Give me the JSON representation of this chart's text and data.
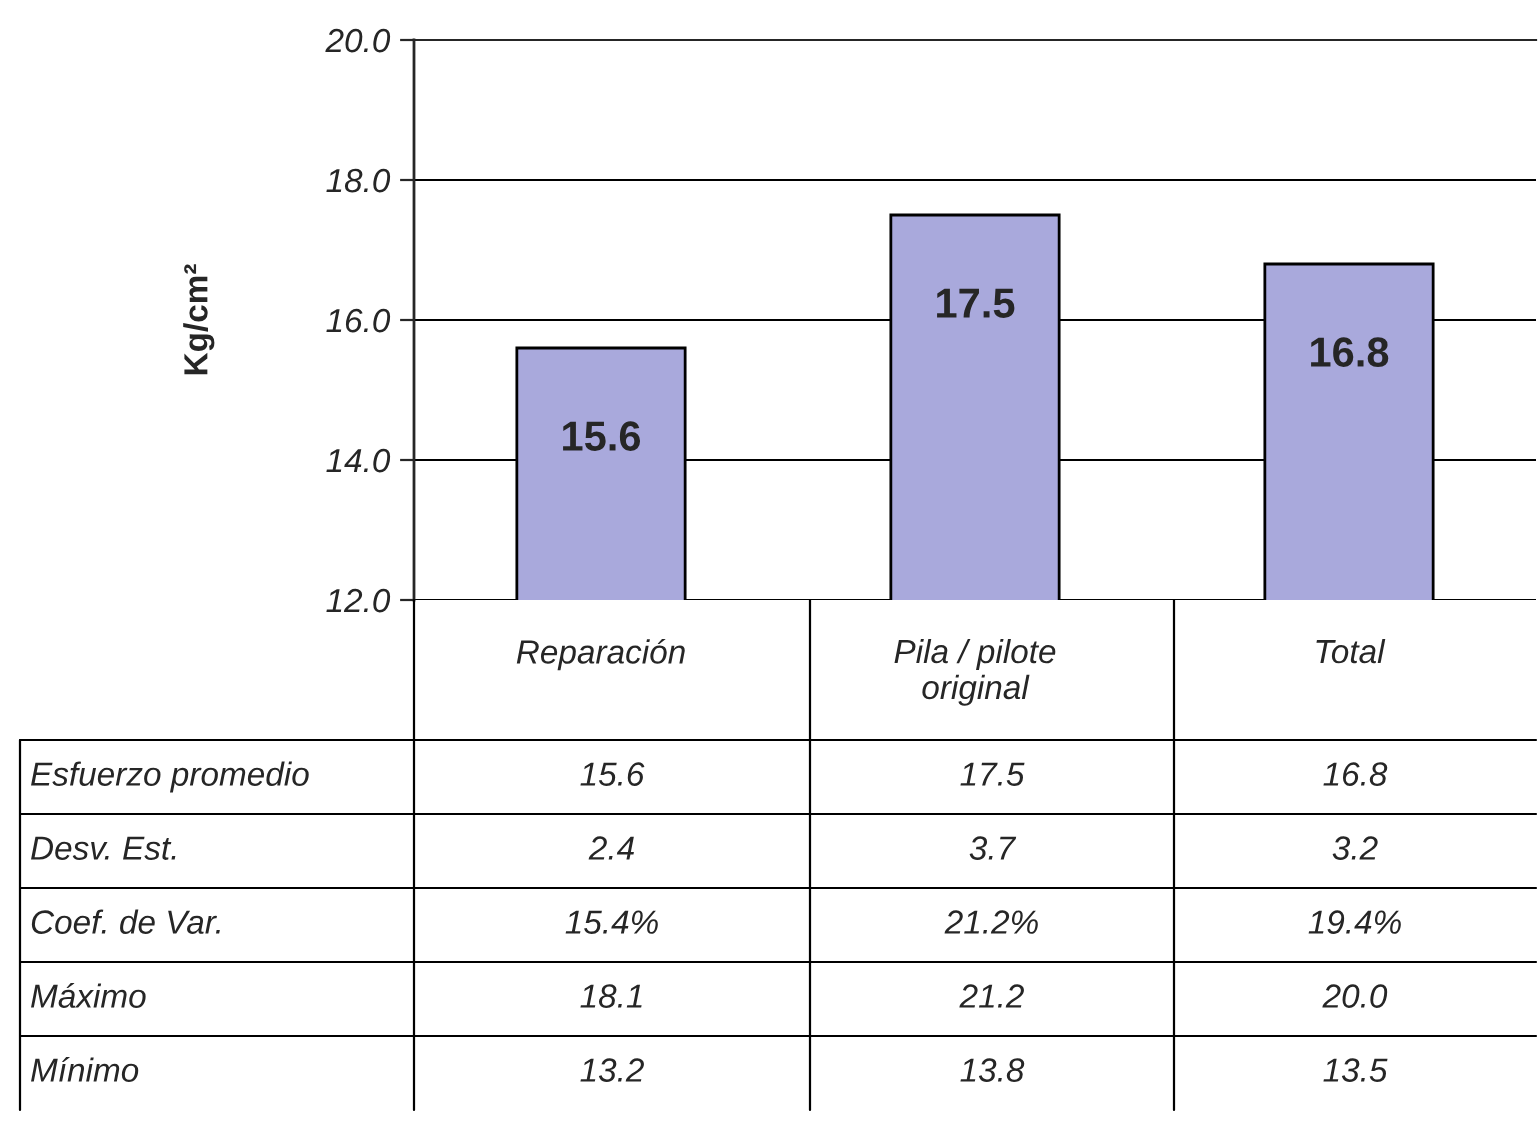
{
  "chart_data": {
    "type": "bar",
    "categories": [
      "Reparación",
      "Pila / pilote original",
      "Total"
    ],
    "values": [
      15.6,
      17.5,
      16.8
    ],
    "color": "#a9a9dc",
    "ylabel": "Kg/cm²",
    "ylim": [
      12,
      20
    ],
    "yticks": [
      {
        "value": 12,
        "label": "12.0"
      },
      {
        "value": 14,
        "label": "14.0"
      },
      {
        "value": 16,
        "label": "16.0"
      },
      {
        "value": 18,
        "label": "18.0"
      },
      {
        "value": 20,
        "label": "20.0"
      }
    ],
    "grid": "y",
    "data_labels": true,
    "annotations": [
      "Esfuerzo promedio",
      "15.6",
      "17.5",
      "16.8",
      "Desv. Est.",
      "2.4",
      "3.7",
      "3.2",
      "Coef. de Var.",
      "15.4%",
      "21.2%",
      "19.4%",
      "Máximo",
      "18.1",
      "21.2",
      "20.0",
      "Mínimo",
      "13.2",
      "13.8",
      "13.5"
    ]
  }
}
